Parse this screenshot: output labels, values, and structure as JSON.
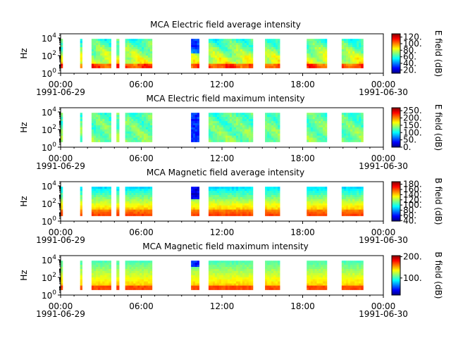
{
  "chart_data": [
    {
      "type": "heatmap",
      "title": "MCA  Electric field average intensity",
      "ylabel": "Hz",
      "colorbar_label": "E field (dB)",
      "colorbar_ticks": [
        "20.",
        "40.",
        "60.",
        "80.",
        "100.",
        "120."
      ],
      "colorbar_range": [
        10,
        130
      ],
      "x_ticks": [
        "00:00",
        "06:00",
        "12:00",
        "18:00",
        "00:00"
      ],
      "x_date_start": "1991-06-29",
      "x_date_end": "1991-06-30",
      "y_ticks": [
        {
          "base": "10",
          "exp": "0"
        },
        {
          "base": "10",
          "exp": "2"
        },
        {
          "base": "10",
          "exp": "4"
        }
      ],
      "ylim": [
        1,
        30000
      ],
      "yscale": "log",
      "profile": "eavg",
      "segments": [
        [
          0.0,
          0.15
        ],
        [
          1.45,
          1.6
        ],
        [
          2.3,
          3.75
        ],
        [
          4.15,
          4.35
        ],
        [
          4.8,
          6.8
        ],
        [
          9.7,
          10.3
        ],
        [
          11.0,
          14.3
        ],
        [
          15.2,
          16.3
        ],
        [
          18.3,
          19.8
        ],
        [
          20.9,
          22.5
        ]
      ]
    },
    {
      "type": "heatmap",
      "title": "MCA  Electric field maximum intensity",
      "ylabel": "Hz",
      "colorbar_label": "E field (dB)",
      "colorbar_ticks": [
        "0.",
        "50.",
        "100.",
        "150.",
        "200.",
        "250."
      ],
      "colorbar_range": [
        0,
        270
      ],
      "x_ticks": [
        "00:00",
        "06:00",
        "12:00",
        "18:00",
        "00:00"
      ],
      "x_date_start": "1991-06-29",
      "x_date_end": "1991-06-30",
      "y_ticks": [
        {
          "base": "10",
          "exp": "0"
        },
        {
          "base": "10",
          "exp": "2"
        },
        {
          "base": "10",
          "exp": "4"
        }
      ],
      "ylim": [
        1,
        30000
      ],
      "yscale": "log",
      "profile": "emax",
      "segments": [
        [
          0.0,
          0.15
        ],
        [
          1.45,
          1.6
        ],
        [
          2.3,
          3.75
        ],
        [
          4.15,
          4.35
        ],
        [
          4.8,
          6.8
        ],
        [
          9.7,
          10.3
        ],
        [
          11.0,
          14.3
        ],
        [
          15.2,
          16.3
        ],
        [
          18.3,
          19.8
        ],
        [
          20.9,
          22.5
        ]
      ]
    },
    {
      "type": "heatmap",
      "title": "MCA  Magnetic field average intensity",
      "ylabel": "Hz",
      "colorbar_label": "B field (dB)",
      "colorbar_ticks": [
        "40.",
        "60.",
        "80.",
        "100.",
        "120.",
        "140.",
        "160.",
        "180."
      ],
      "colorbar_range": [
        38,
        190
      ],
      "x_ticks": [
        "00:00",
        "06:00",
        "12:00",
        "18:00",
        "00:00"
      ],
      "x_date_start": "1991-06-29",
      "x_date_end": "1991-06-30",
      "y_ticks": [
        {
          "base": "10",
          "exp": "0"
        },
        {
          "base": "10",
          "exp": "2"
        },
        {
          "base": "10",
          "exp": "4"
        }
      ],
      "ylim": [
        1,
        30000
      ],
      "yscale": "log",
      "profile": "bavg",
      "segments": [
        [
          0.0,
          0.15
        ],
        [
          1.45,
          1.6
        ],
        [
          2.3,
          3.75
        ],
        [
          4.15,
          4.35
        ],
        [
          4.8,
          6.8
        ],
        [
          9.7,
          10.3
        ],
        [
          11.0,
          14.3
        ],
        [
          15.2,
          16.3
        ],
        [
          18.3,
          19.8
        ],
        [
          20.9,
          22.5
        ]
      ]
    },
    {
      "type": "heatmap",
      "title": "MCA  Magnetic field maximum intensity",
      "ylabel": "Hz",
      "colorbar_label": "B field (dB)",
      "colorbar_ticks": [
        "100.",
        "200."
      ],
      "colorbar_range": [
        20,
        205
      ],
      "x_ticks": [
        "00:00",
        "06:00",
        "12:00",
        "18:00",
        "00:00"
      ],
      "x_date_start": "1991-06-29",
      "x_date_end": "1991-06-30",
      "y_ticks": [
        {
          "base": "10",
          "exp": "0"
        },
        {
          "base": "10",
          "exp": "2"
        },
        {
          "base": "10",
          "exp": "4"
        }
      ],
      "ylim": [
        1,
        30000
      ],
      "yscale": "log",
      "profile": "bmax",
      "segments": [
        [
          0.0,
          0.15
        ],
        [
          1.45,
          1.6
        ],
        [
          2.3,
          3.75
        ],
        [
          4.15,
          4.35
        ],
        [
          4.8,
          6.8
        ],
        [
          9.7,
          10.3
        ],
        [
          11.0,
          14.3
        ],
        [
          15.2,
          16.3
        ],
        [
          18.3,
          19.8
        ],
        [
          20.9,
          22.5
        ]
      ]
    }
  ]
}
